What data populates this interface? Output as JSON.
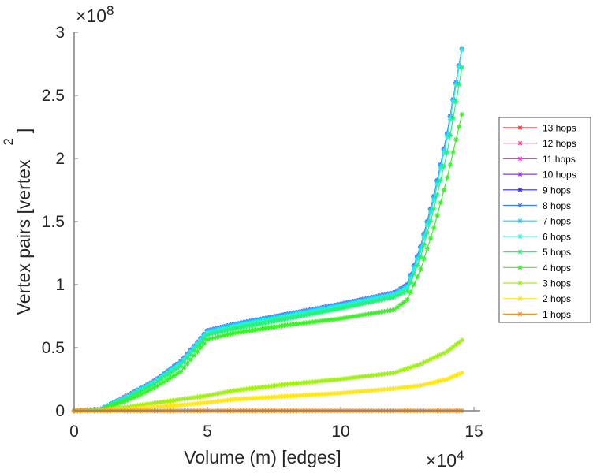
{
  "chart_data": {
    "type": "line",
    "title": "",
    "xlabel": "Volume (m) [edges]",
    "ylabel": "Vertex pairs [vertex",
    "ylabel_superscript": "2",
    "ylabel_suffix": "]",
    "x_exponent_label": "×10",
    "x_exponent": "4",
    "y_exponent_label": "×10",
    "y_exponent": "8",
    "xlim": [
      0,
      15
    ],
    "ylim": [
      0,
      3
    ],
    "xticks": [
      0,
      5,
      10,
      15
    ],
    "xtick_labels": [
      "0",
      "5",
      "10",
      "15"
    ],
    "yticks": [
      0,
      0.5,
      1,
      1.5,
      2,
      2.5,
      3
    ],
    "ytick_labels": [
      "0",
      "0.5",
      "1",
      "1.5",
      "2",
      "2.5",
      "3"
    ],
    "grid": false,
    "legend_position": "right-outside",
    "marker": "asterisk",
    "x_units_note": "x values in units of 1e4 edges",
    "y_units_note": "y values in units of 1e8 vertex^2",
    "series": [
      {
        "name": "13 hops",
        "color": "#ff2a2a",
        "x": [
          0,
          1,
          2,
          3,
          4,
          5,
          6,
          8,
          10,
          12,
          12.5,
          13,
          13.5,
          14,
          14.55
        ],
        "y": [
          0,
          0.012,
          0.12,
          0.235,
          0.39,
          0.635,
          0.685,
          0.765,
          0.845,
          0.935,
          1.0,
          1.3,
          1.7,
          2.2,
          2.87
        ]
      },
      {
        "name": "12 hops",
        "color": "#ff3c96",
        "x": [
          0,
          1,
          2,
          3,
          4,
          5,
          6,
          8,
          10,
          12,
          12.5,
          13,
          13.5,
          14,
          14.55
        ],
        "y": [
          0,
          0.012,
          0.12,
          0.235,
          0.39,
          0.635,
          0.685,
          0.765,
          0.845,
          0.935,
          1.0,
          1.3,
          1.7,
          2.2,
          2.87
        ]
      },
      {
        "name": "11 hops",
        "color": "#ff28e6",
        "x": [
          0,
          1,
          2,
          3,
          4,
          5,
          6,
          8,
          10,
          12,
          12.5,
          13,
          13.5,
          14,
          14.55
        ],
        "y": [
          0,
          0.012,
          0.12,
          0.235,
          0.39,
          0.635,
          0.685,
          0.765,
          0.845,
          0.935,
          1.0,
          1.3,
          1.7,
          2.2,
          2.87
        ]
      },
      {
        "name": "10 hops",
        "color": "#a028ff",
        "x": [
          0,
          1,
          2,
          3,
          4,
          5,
          6,
          8,
          10,
          12,
          12.5,
          13,
          13.5,
          14,
          14.55
        ],
        "y": [
          0,
          0.012,
          0.12,
          0.235,
          0.39,
          0.635,
          0.685,
          0.765,
          0.845,
          0.935,
          1.0,
          1.3,
          1.7,
          2.2,
          2.87
        ]
      },
      {
        "name": "9 hops",
        "color": "#2828ff",
        "x": [
          0,
          1,
          2,
          3,
          4,
          5,
          6,
          8,
          10,
          12,
          12.5,
          13,
          13.5,
          14,
          14.55
        ],
        "y": [
          0,
          0.012,
          0.12,
          0.235,
          0.39,
          0.635,
          0.685,
          0.765,
          0.845,
          0.935,
          1.0,
          1.3,
          1.7,
          2.2,
          2.87
        ]
      },
      {
        "name": "8 hops",
        "color": "#3c78ff",
        "x": [
          0,
          1,
          2,
          3,
          4,
          5,
          6,
          8,
          10,
          12,
          12.5,
          13,
          13.5,
          14,
          14.55
        ],
        "y": [
          0,
          0.012,
          0.12,
          0.235,
          0.39,
          0.635,
          0.685,
          0.765,
          0.845,
          0.935,
          1.0,
          1.3,
          1.7,
          2.2,
          2.87
        ]
      },
      {
        "name": "7 hops",
        "color": "#1ec8ff",
        "x": [
          0,
          1,
          2,
          3,
          4,
          5,
          6,
          8,
          10,
          12,
          12.5,
          13,
          13.5,
          14,
          14.55
        ],
        "y": [
          0,
          0.011,
          0.118,
          0.232,
          0.385,
          0.63,
          0.68,
          0.76,
          0.84,
          0.93,
          0.99,
          1.29,
          1.69,
          2.19,
          2.87
        ]
      },
      {
        "name": "6 hops",
        "color": "#28f0dc",
        "x": [
          0,
          1,
          2,
          3,
          4,
          5,
          6,
          8,
          10,
          12,
          12.5,
          13,
          13.5,
          14,
          14.55
        ],
        "y": [
          0,
          0.01,
          0.112,
          0.225,
          0.375,
          0.62,
          0.67,
          0.75,
          0.83,
          0.92,
          0.975,
          1.27,
          1.67,
          2.17,
          2.86
        ]
      },
      {
        "name": "5 hops",
        "color": "#28f078",
        "x": [
          0,
          1,
          2,
          3,
          4,
          5,
          6,
          8,
          10,
          12,
          12.5,
          13,
          13.5,
          14,
          14.55
        ],
        "y": [
          0,
          0.008,
          0.1,
          0.21,
          0.355,
          0.6,
          0.65,
          0.73,
          0.81,
          0.9,
          0.95,
          1.22,
          1.6,
          2.05,
          2.72
        ]
      },
      {
        "name": "4 hops",
        "color": "#3cf028",
        "x": [
          0,
          1,
          2,
          3,
          4,
          5,
          6,
          8,
          10,
          12,
          12.5,
          13,
          13.5,
          14,
          14.55
        ],
        "y": [
          0,
          0.005,
          0.08,
          0.18,
          0.31,
          0.565,
          0.615,
          0.68,
          0.73,
          0.8,
          0.88,
          1.12,
          1.45,
          1.85,
          2.35
        ]
      },
      {
        "name": "3 hops",
        "color": "#a0f014",
        "x": [
          0,
          1,
          2,
          3,
          4,
          5,
          6,
          8,
          10,
          12,
          13,
          14,
          14.55
        ],
        "y": [
          0,
          0.005,
          0.03,
          0.06,
          0.09,
          0.12,
          0.16,
          0.21,
          0.25,
          0.3,
          0.37,
          0.47,
          0.56
        ]
      },
      {
        "name": "2 hops",
        "color": "#ffe614",
        "x": [
          0,
          1,
          2,
          3,
          4,
          5,
          6,
          8,
          10,
          12,
          13,
          14,
          14.55
        ],
        "y": [
          0,
          0.002,
          0.015,
          0.03,
          0.045,
          0.065,
          0.09,
          0.115,
          0.14,
          0.175,
          0.2,
          0.25,
          0.3
        ]
      },
      {
        "name": "1 hops",
        "color": "#ff8c14",
        "x": [
          0,
          1,
          2,
          3,
          4,
          5,
          6,
          8,
          10,
          12,
          13,
          14,
          14.55
        ],
        "y": [
          0,
          0,
          0,
          0,
          0,
          0,
          0,
          0,
          0,
          0,
          0,
          0,
          0
        ]
      }
    ]
  }
}
